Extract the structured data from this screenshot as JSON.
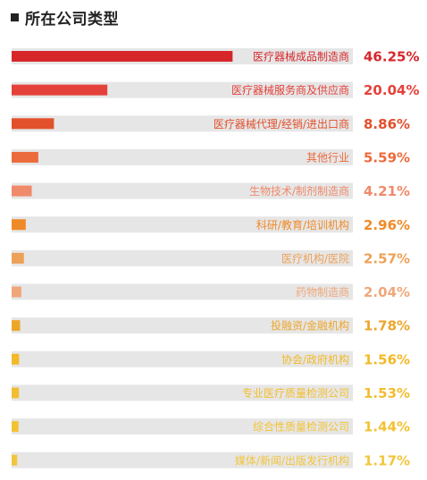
{
  "chart_data": {
    "type": "bar",
    "orientation": "horizontal",
    "title": "所在公司类型",
    "categories": [
      "医疗器械成品制造商",
      "医疗器械服务商及供应商",
      "医疗器械代理/经销/进出口商",
      "其他行业",
      "生物技术/制剂制造商",
      "科研/教育/培训机构",
      "医疗机构/医院",
      "药物制造商",
      "投融资/金融机构",
      "协会/政府机构",
      "专业医疗质量检测公司",
      "综合性质量检测公司",
      "媒体/新闻/出版发行机构"
    ],
    "values": [
      46.25,
      20.04,
      8.86,
      5.59,
      4.21,
      2.96,
      2.57,
      2.04,
      1.78,
      1.56,
      1.53,
      1.44,
      1.17
    ],
    "value_labels": [
      "46.25%",
      "20.04%",
      "8.86%",
      "5.59%",
      "4.21%",
      "2.96%",
      "2.57%",
      "2.04%",
      "1.78%",
      "1.56%",
      "1.53%",
      "1.44%",
      "1.17%"
    ],
    "colors": [
      "#d7262a",
      "#e4413a",
      "#e2502c",
      "#ec6b3c",
      "#ef8a6a",
      "#ef8a28",
      "#eda157",
      "#efa77a",
      "#eda62a",
      "#f2b928",
      "#f2bd30",
      "#f3c232",
      "#f2c53c"
    ],
    "track_color": "#e6e6e6",
    "xlim": [
      0,
      100
    ],
    "grid": false,
    "legend": "none"
  }
}
